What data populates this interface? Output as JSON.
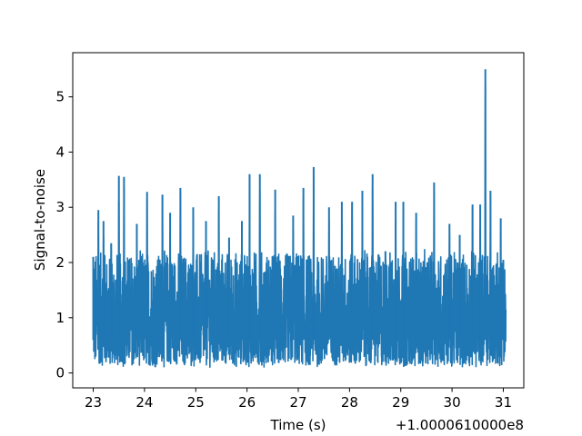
{
  "chart_data": {
    "type": "line",
    "title": "",
    "xlabel": "Time (s)",
    "ylabel": "Signal-to-noise",
    "x_offset_label": "+1.0000610000e8",
    "xlim": [
      22.6,
      31.4
    ],
    "ylim": [
      -0.27,
      5.8
    ],
    "xticks": [
      23,
      24,
      25,
      26,
      27,
      28,
      29,
      30,
      31
    ],
    "yticks": [
      0,
      1,
      2,
      3,
      4,
      5
    ],
    "grid": false,
    "legend": "none",
    "line_color": "#1f77b4",
    "series": [
      {
        "x_range": [
          23.0,
          31.05
        ],
        "typical_range": [
          0.1,
          2.3
        ],
        "peaks": [
          {
            "x": 23.0,
            "y": 2.1
          },
          {
            "x": 23.1,
            "y": 2.95
          },
          {
            "x": 23.2,
            "y": 2.75
          },
          {
            "x": 23.35,
            "y": 2.35
          },
          {
            "x": 23.5,
            "y": 3.57
          },
          {
            "x": 23.6,
            "y": 3.55
          },
          {
            "x": 23.85,
            "y": 2.7
          },
          {
            "x": 24.05,
            "y": 3.28
          },
          {
            "x": 24.35,
            "y": 3.23
          },
          {
            "x": 24.5,
            "y": 2.9
          },
          {
            "x": 24.7,
            "y": 3.35
          },
          {
            "x": 24.95,
            "y": 3.0
          },
          {
            "x": 25.2,
            "y": 2.75
          },
          {
            "x": 25.45,
            "y": 3.2
          },
          {
            "x": 25.65,
            "y": 2.45
          },
          {
            "x": 25.9,
            "y": 2.75
          },
          {
            "x": 26.05,
            "y": 3.6
          },
          {
            "x": 26.25,
            "y": 3.6
          },
          {
            "x": 26.55,
            "y": 3.32
          },
          {
            "x": 26.9,
            "y": 2.85
          },
          {
            "x": 27.1,
            "y": 3.35
          },
          {
            "x": 27.3,
            "y": 3.73
          },
          {
            "x": 27.6,
            "y": 3.0
          },
          {
            "x": 27.85,
            "y": 3.1
          },
          {
            "x": 28.05,
            "y": 3.1
          },
          {
            "x": 28.25,
            "y": 3.3
          },
          {
            "x": 28.45,
            "y": 3.6
          },
          {
            "x": 28.7,
            "y": 2.2
          },
          {
            "x": 28.9,
            "y": 3.1
          },
          {
            "x": 29.05,
            "y": 3.1
          },
          {
            "x": 29.3,
            "y": 2.9
          },
          {
            "x": 29.65,
            "y": 3.45
          },
          {
            "x": 29.95,
            "y": 2.7
          },
          {
            "x": 30.15,
            "y": 2.5
          },
          {
            "x": 30.4,
            "y": 3.05
          },
          {
            "x": 30.55,
            "y": 3.05
          },
          {
            "x": 30.65,
            "y": 5.5
          },
          {
            "x": 30.75,
            "y": 3.3
          },
          {
            "x": 30.95,
            "y": 2.8
          },
          {
            "x": 31.0,
            "y": 2.05
          }
        ]
      }
    ]
  }
}
